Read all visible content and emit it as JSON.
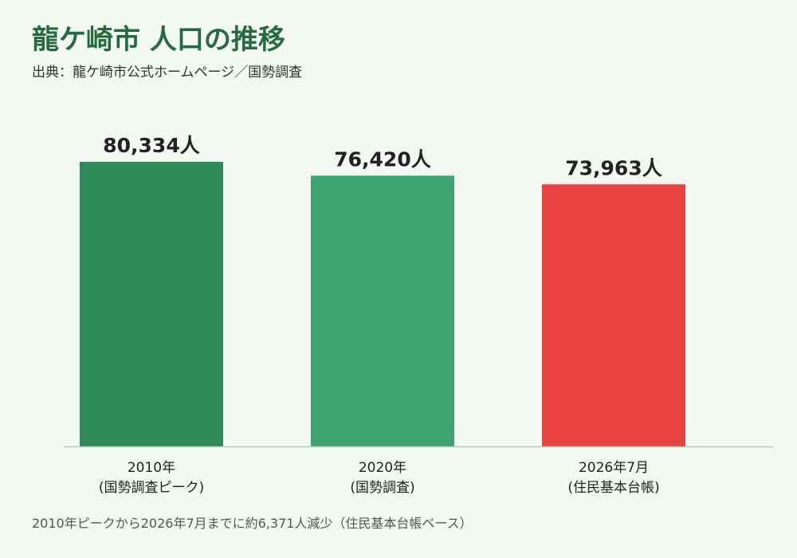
{
  "page": {
    "title": "龍ケ崎市 人口の推移",
    "source": "出典：龍ケ崎市公式ホームページ／国勢調査",
    "footnote": "2010年ピークから2026年7月までに約6,371人減少（住民基本台帳ベース）"
  },
  "chart_data": {
    "type": "bar",
    "title": "龍ケ崎市 人口の推移",
    "subtitle": "出典：龍ケ崎市公式ホームページ／国勢調査",
    "categories": [
      [
        "2010年",
        "(国勢調査ピーク)"
      ],
      [
        "2020年",
        "(国勢調査)"
      ],
      [
        "2026年7月",
        "(住民基本台帳)"
      ]
    ],
    "values": [
      80334,
      76420,
      73963
    ],
    "value_labels": [
      "80,334人",
      "76,420人",
      "73,963人"
    ],
    "bar_colors": [
      "#2e8b57",
      "#3ea372",
      "#e84241"
    ],
    "xlabel": "",
    "ylabel": "",
    "grid": false,
    "legend": "none",
    "ylim": [
      0,
      90000
    ]
  }
}
